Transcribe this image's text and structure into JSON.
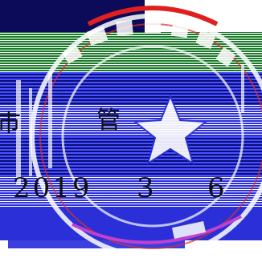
{
  "document": {
    "partial_char": "巿",
    "char": "管",
    "date": {
      "year": "2019",
      "month": "3",
      "day": "6"
    }
  },
  "seal": {
    "type": "official-stamp",
    "ring_text": "",
    "bottom_text": "",
    "colors": {
      "stamp_red": "#d83030",
      "bright_blue": "#2a2fd8",
      "dark_blue": "#0a0f7a",
      "green": "#1a8a2a",
      "white": "#ffffff",
      "black": "#111111"
    }
  }
}
